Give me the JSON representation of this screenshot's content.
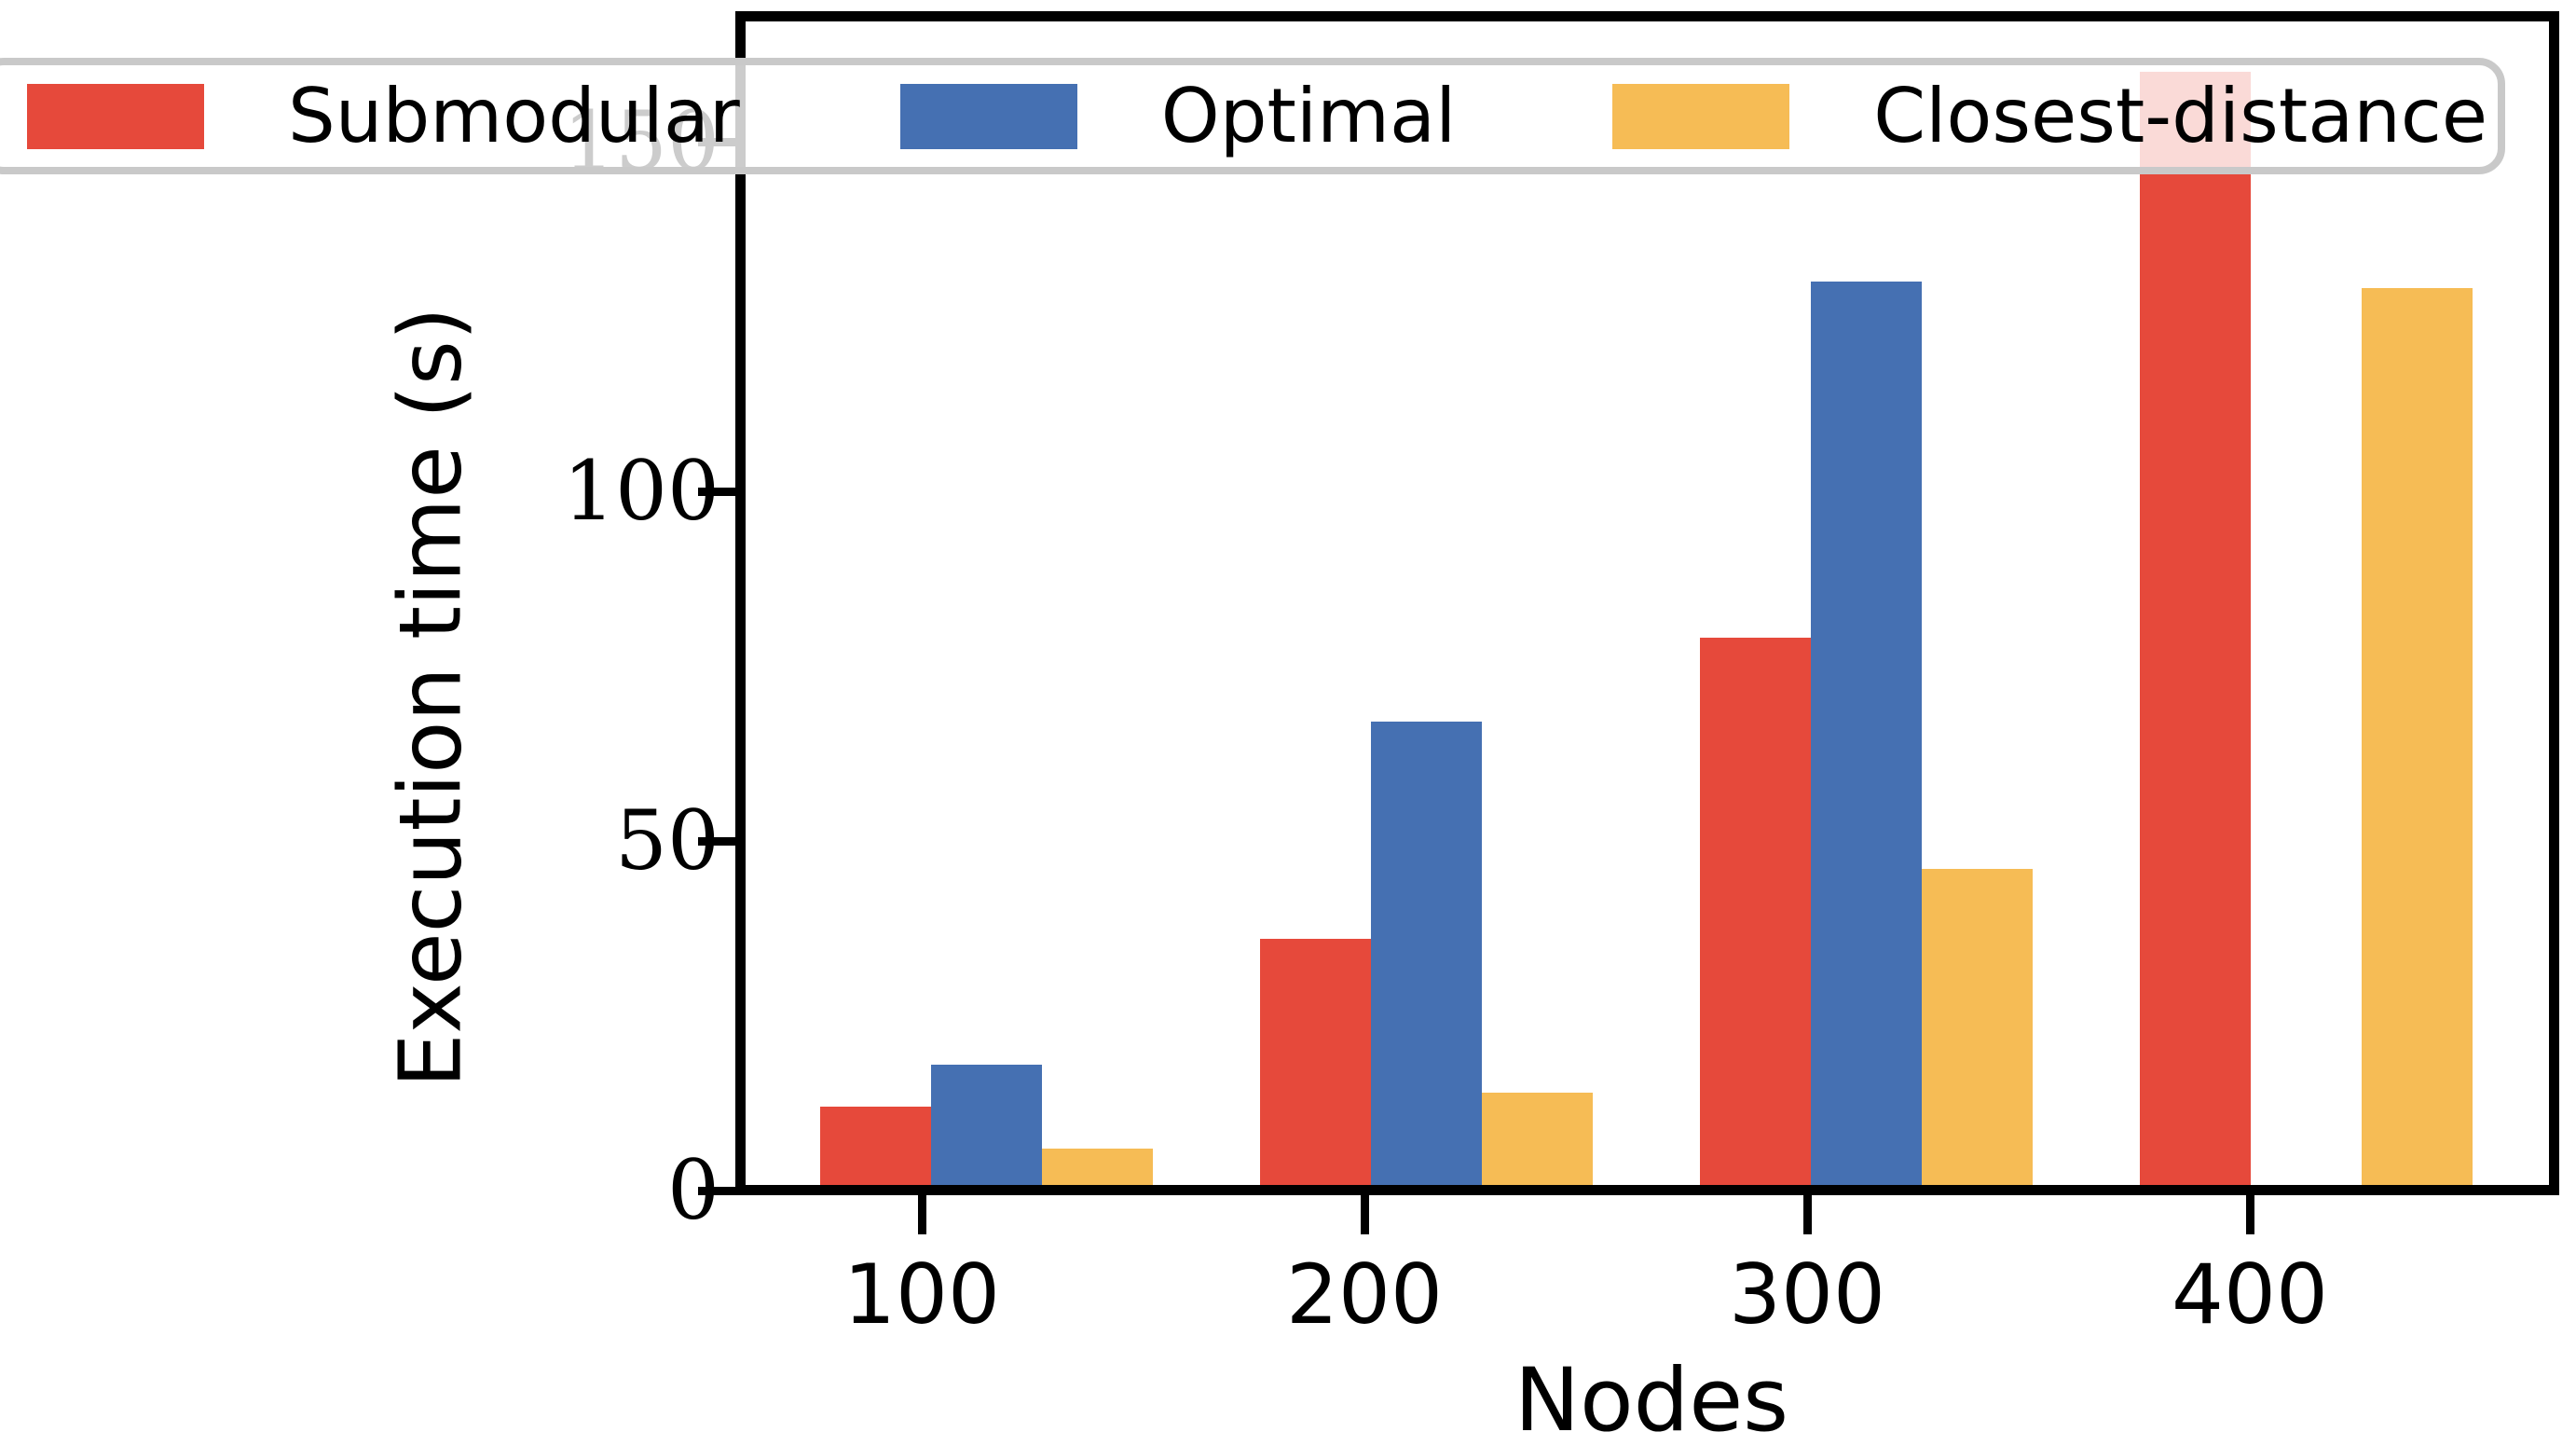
{
  "chart_data": {
    "type": "bar",
    "title": "",
    "xlabel": "Nodes",
    "ylabel": "Execution time (s)",
    "categories": [
      "100",
      "200",
      "300",
      "400"
    ],
    "series": [
      {
        "name": "Submodular",
        "color": "#E6493B",
        "values": [
          12,
          36,
          79,
          160
        ]
      },
      {
        "name": "Optimal",
        "color": "#4570B2",
        "values": [
          18,
          67,
          130,
          null
        ]
      },
      {
        "name": "Closest-distance",
        "color": "#F6BC55",
        "values": [
          6,
          14,
          46,
          129
        ]
      }
    ],
    "y_ticks": [
      0,
      50,
      100,
      150
    ],
    "y_tick_labels": [
      "0",
      "50",
      "100",
      "150"
    ],
    "x_tick_labels": [
      "100",
      "200",
      "300",
      "400"
    ],
    "ylim": [
      0,
      168
    ],
    "grid": false,
    "legend_position": "top"
  }
}
